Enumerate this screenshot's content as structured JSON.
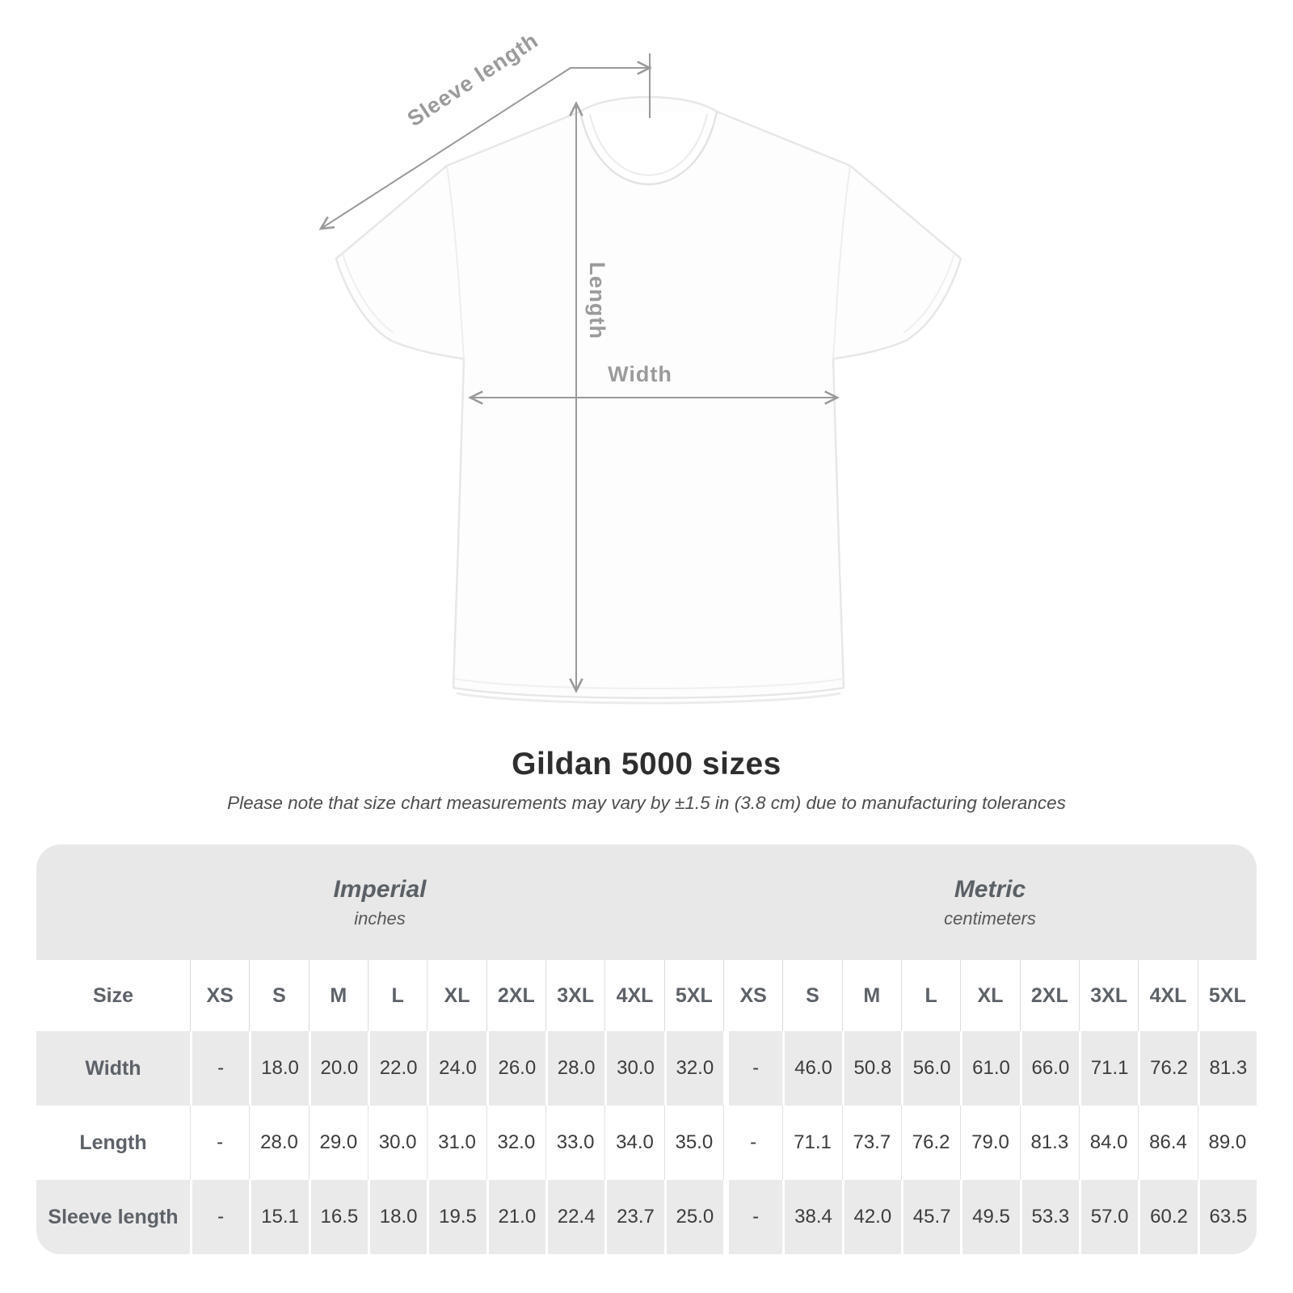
{
  "diagram": {
    "labels": {
      "sleeve_length": "Sleeve length",
      "length": "Length",
      "width": "Width"
    }
  },
  "title": "Gildan 5000 sizes",
  "subtitle": "Please note that size chart measurements may vary by ±1.5 in (3.8 cm) due to manufacturing tolerances",
  "table": {
    "unit_groups": [
      {
        "label": "Imperial",
        "sublabel": "inches"
      },
      {
        "label": "Metric",
        "sublabel": "centimeters"
      }
    ],
    "size_header": "Size",
    "sizes": [
      "XS",
      "S",
      "M",
      "L",
      "XL",
      "2XL",
      "3XL",
      "4XL",
      "5XL"
    ],
    "rows": [
      {
        "label": "Width",
        "imperial": [
          "-",
          "18.0",
          "20.0",
          "22.0",
          "24.0",
          "26.0",
          "28.0",
          "30.0",
          "32.0"
        ],
        "metric": [
          "-",
          "46.0",
          "50.8",
          "56.0",
          "61.0",
          "66.0",
          "71.1",
          "76.2",
          "81.3"
        ]
      },
      {
        "label": "Length",
        "imperial": [
          "-",
          "28.0",
          "29.0",
          "30.0",
          "31.0",
          "32.0",
          "33.0",
          "34.0",
          "35.0"
        ],
        "metric": [
          "-",
          "71.1",
          "73.7",
          "76.2",
          "79.0",
          "81.3",
          "84.0",
          "86.4",
          "89.0"
        ]
      },
      {
        "label": "Sleeve length",
        "imperial": [
          "-",
          "15.1",
          "16.5",
          "18.0",
          "19.5",
          "21.0",
          "22.4",
          "23.7",
          "25.0"
        ],
        "metric": [
          "-",
          "38.4",
          "42.0",
          "45.7",
          "49.5",
          "53.3",
          "57.0",
          "60.2",
          "63.5"
        ]
      }
    ]
  },
  "colors": {
    "title_text": "#2e2e2e",
    "subtitle_text": "#4d4d4d",
    "dimension_lines": "#9a9a9a",
    "dimension_labels": "#9b9b9b",
    "band_background": "#e8e8e8",
    "shaded_row_background": "#eaeaea",
    "header_text": "#5d6268",
    "value_text": "#3c3c3c",
    "shirt_outline": "#e7e7e7"
  }
}
